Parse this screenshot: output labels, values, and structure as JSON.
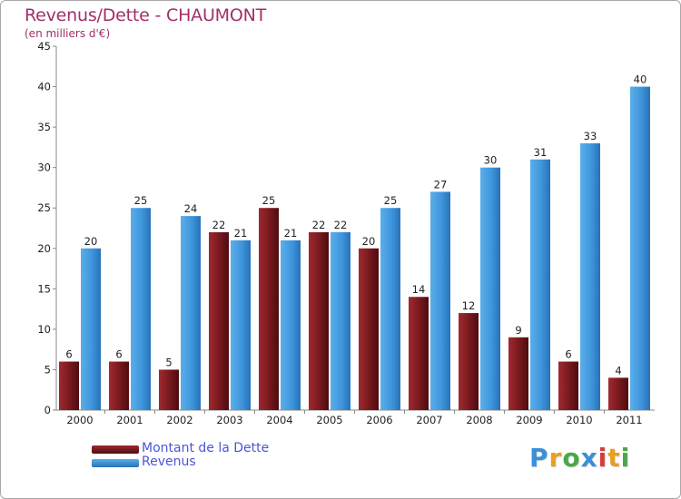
{
  "title": "Revenus/Dette - CHAUMONT",
  "subtitle": "(en milliers d'€)",
  "colors": {
    "dette": "#7a1a1e",
    "revenus": "#3f96dc",
    "title": "#a0306a",
    "legend_text": "#4a56d8"
  },
  "chart_data": {
    "type": "bar",
    "title": "Revenus/Dette - CHAUMONT",
    "ylabel": "(en milliers d'€)",
    "xlabel": "",
    "categories": [
      "2000",
      "2001",
      "2002",
      "2003",
      "2004",
      "2005",
      "2006",
      "2007",
      "2008",
      "2009",
      "2010",
      "2011"
    ],
    "series": [
      {
        "name": "Montant de la Dette",
        "values": [
          6,
          6,
          5,
          22,
          25,
          22,
          20,
          14,
          12,
          9,
          6,
          4
        ]
      },
      {
        "name": "Revenus",
        "values": [
          20,
          25,
          24,
          21,
          21,
          22,
          25,
          27,
          30,
          31,
          33,
          40
        ]
      }
    ],
    "ylim": [
      0,
      45
    ],
    "yticks": [
      0,
      5,
      10,
      15,
      20,
      25,
      30,
      35,
      40,
      45
    ],
    "grid": false,
    "legend": "bottom-left"
  },
  "legend": {
    "items": [
      {
        "label": "Montant de la Dette",
        "color": "#7a1a1e"
      },
      {
        "label": "Revenus",
        "color": "#3f96dc"
      }
    ]
  },
  "logo": {
    "letters": [
      "P",
      "r",
      "o",
      "x",
      "i",
      "t",
      "i"
    ],
    "colors": [
      "#3a8fd8",
      "#e8a020",
      "#4aa84a",
      "#3a8fd8",
      "#d83a3a",
      "#e8a020",
      "#4aa84a"
    ]
  }
}
